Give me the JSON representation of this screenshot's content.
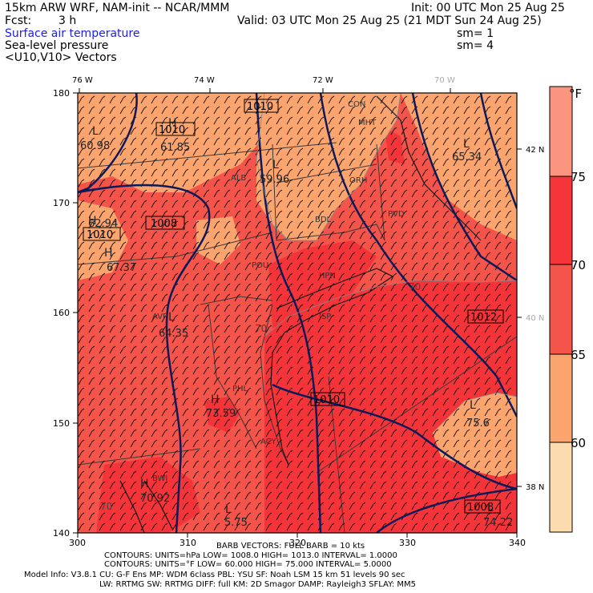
{
  "header": {
    "model": "15km ARW WRF, NAM-init -- NCAR/MMM",
    "init": "Init: 00 UTC Mon 25 Aug 25",
    "fcst_label": "Fcst:",
    "fcst_value": "3 h",
    "valid": "Valid: 03 UTC Mon 25 Aug 25 (21 MDT Sun 24 Aug 25)",
    "fields": [
      {
        "name": "Surface air temperature",
        "sm": "",
        "color": "#1a1aff"
      },
      {
        "name": "Sea-level pressure",
        "sm": "sm= 1"
      },
      {
        "name": "<U10,V10> Vectors",
        "sm": "sm= 4"
      }
    ]
  },
  "map": {
    "top_lon_labels": [
      "76 W",
      "74 W",
      "72 W",
      "70 W"
    ],
    "right_lat_labels": [
      "42 N",
      "40 N",
      "38 N"
    ],
    "y_ticks": [
      "180",
      "170",
      "160",
      "150",
      "140"
    ],
    "x_ticks": [
      "300",
      "310",
      "320",
      "330",
      "340"
    ],
    "city_labels": [
      "CON",
      "MHT",
      "ALB",
      "ORH",
      "BDL",
      "PVD",
      "POU",
      "HPN",
      "AVP",
      "ISP",
      "PHL",
      "ACY",
      "BWI"
    ],
    "pressure_labels": [
      "1010",
      "1010",
      "1008",
      "1010",
      "1010",
      "1012",
      "1008"
    ],
    "high_low": [
      {
        "type": "H",
        "value": "61.85"
      },
      {
        "type": "L",
        "value": "60.98"
      },
      {
        "type": "L",
        "value": "59.96"
      },
      {
        "type": "L",
        "value": "65.34"
      },
      {
        "type": "H",
        "value": "62.94"
      },
      {
        "type": "H",
        "value": "67.37"
      },
      {
        "type": "L",
        "value": "64.35"
      },
      {
        "type": "H",
        "value": "73.59"
      },
      {
        "type": "L",
        "value": "75.6"
      },
      {
        "type": "L",
        "value": "74.22"
      },
      {
        "type": "H",
        "value": "70.92"
      },
      {
        "type": "L",
        "value": "5.75"
      }
    ],
    "isotherm_labels": [
      "70",
      "70",
      "70"
    ]
  },
  "colorbar": {
    "unit": "°F",
    "labels": [
      "75",
      "70",
      "65",
      "60"
    ],
    "colors": [
      "#fc9580",
      "#f5343a",
      "#f4544a",
      "#fca46e",
      "#fcc88c",
      "#fce0b0"
    ]
  },
  "footer": {
    "barb": "BARB VECTORS:  FULL BARB = 10 kts",
    "contours1": "CONTOURS:  UNITS=hPa   LOW=   1008.0        HIGH=   1013.0        INTERVAL=    1.0000",
    "contours2": "CONTOURS:  UNITS=°F   LOW=   60.000       HIGH=   75.000        INTERVAL=    5.0000",
    "model_info1": "Model Info: V3.8.1     CU: G-F Ens MP: WDM 6class   PBL: YSU       SF: Noah LSM     15 km    51 levels   90 sec",
    "model_info2": "LW: RRTMG    SW: RRTMG   DIFF: full    KM: 2D Smagor DAMP: Rayleigh3   SFLAY: MM5"
  },
  "chart_data": {
    "type": "heatmap",
    "title": "",
    "x_ticks": [
      300,
      310,
      320,
      330,
      340
    ],
    "y_ticks": [
      140,
      150,
      160,
      170,
      180
    ],
    "xlim": [
      300,
      340
    ],
    "ylim": [
      140,
      180
    ],
    "colorbar_levels": [
      60,
      65,
      70,
      75
    ],
    "unit": "°F"
  }
}
